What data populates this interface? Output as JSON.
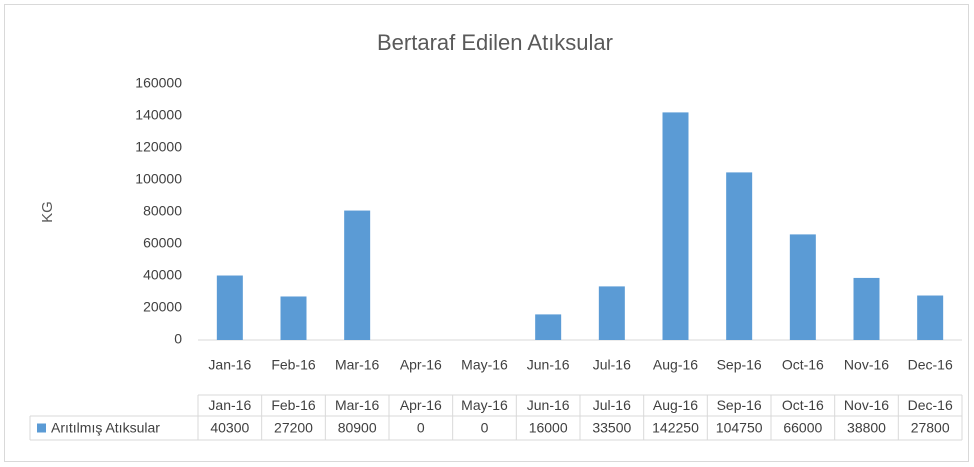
{
  "chart_data": {
    "type": "bar",
    "title": "Bertaraf Edilen Atıksular",
    "y_label": "KG",
    "categories": [
      "Jan-16",
      "Feb-16",
      "Mar-16",
      "Apr-16",
      "May-16",
      "Jun-16",
      "Jul-16",
      "Aug-16",
      "Sep-16",
      "Oct-16",
      "Nov-16",
      "Dec-16"
    ],
    "series": [
      {
        "name": "Arıtılmış Atıksular",
        "color": "#5b9bd5",
        "values": [
          40300,
          27200,
          80900,
          0,
          0,
          16000,
          33500,
          142250,
          104750,
          66000,
          38800,
          27800
        ]
      }
    ],
    "ylim": [
      0,
      160000
    ],
    "yticks": [
      0,
      20000,
      40000,
      60000,
      80000,
      100000,
      120000,
      140000,
      160000
    ],
    "grid": false,
    "data_table": true
  }
}
